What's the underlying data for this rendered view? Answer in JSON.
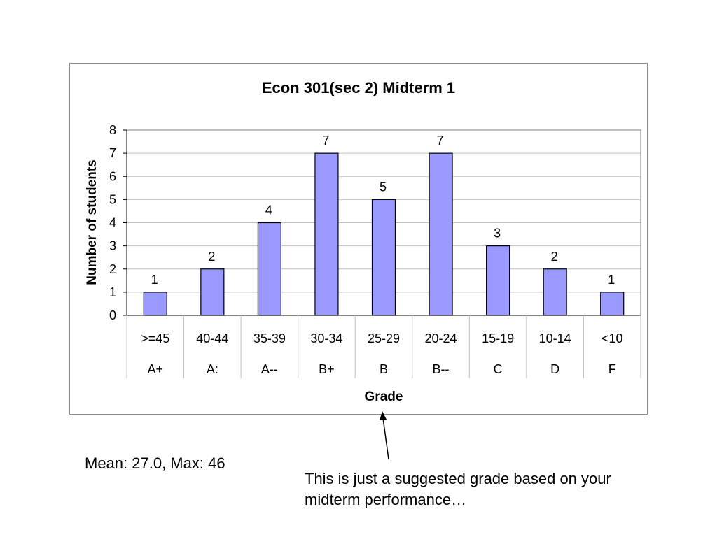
{
  "chart_data": {
    "type": "bar",
    "title": "Econ 301(sec 2) Midterm 1",
    "xlabel": "Grade",
    "ylabel": "Number of students",
    "categories": [
      ">=45",
      "40-44",
      "35-39",
      "30-34",
      "25-29",
      "20-24",
      "15-19",
      "10-14",
      "<10"
    ],
    "grades": [
      "A+",
      "A:",
      "A--",
      "B+",
      "B",
      "B--",
      "C",
      "D",
      "F"
    ],
    "values": [
      1,
      2,
      4,
      7,
      5,
      7,
      3,
      2,
      1
    ],
    "yticks": [
      "0",
      "1",
      "2",
      "3",
      "4",
      "5",
      "6",
      "7",
      "8"
    ],
    "ylim": [
      0,
      8
    ],
    "grid": true,
    "legend": "none",
    "bar_color": "#9999ff",
    "bar_border": "#000000",
    "gridline_color": "#c0c0c0"
  },
  "notes": {
    "stats": "Mean: 27.0, Max: 46",
    "disclaimer_line1": "This is just a suggested grade based on your",
    "disclaimer_line2": "midterm performance…"
  }
}
